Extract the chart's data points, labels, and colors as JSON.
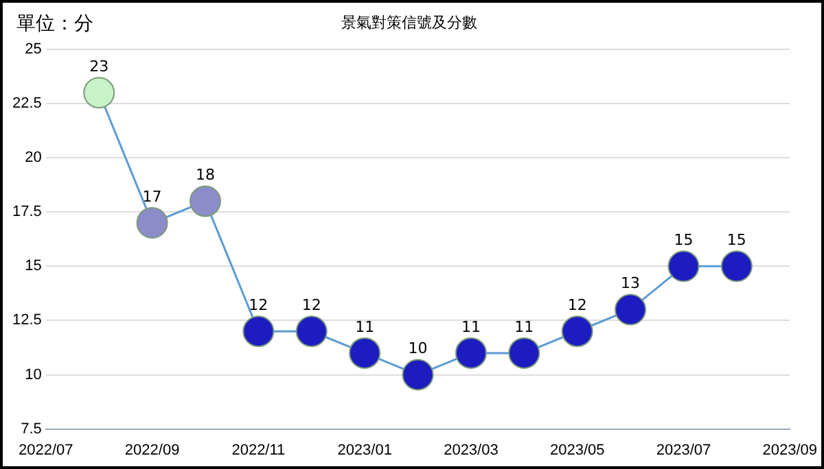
{
  "chart_data": {
    "type": "line",
    "title": "景氣對策信號及分數",
    "ylabel": "單位：分",
    "x": [
      "2022-08",
      "2022-09",
      "2022-10",
      "2022-11",
      "2022-12",
      "2023-01",
      "2023-02",
      "2023-03",
      "2023-04",
      "2023-05",
      "2023-06",
      "2023-07",
      "2023-08"
    ],
    "series": [
      {
        "color": "#5b9bd5",
        "values": [
          23,
          17,
          18,
          12,
          12,
          11,
          10,
          11,
          11,
          12,
          13,
          15,
          15
        ],
        "colors": [
          "#c8f2c8",
          "#8c8cc8",
          "#8c8cc8",
          "#1c1cc0",
          "#1c1cc0",
          "#1c1cc0",
          "#1c1cc0",
          "#1c1cc0",
          "#1c1cc0",
          "#1c1cc0",
          "#1c1cc0",
          "#1c1cc0",
          "#1c1cc0"
        ]
      }
    ],
    "xlim": [
      "2022-07",
      "2023-09"
    ],
    "xticks": [
      {
        "value": "2022-07",
        "label": "2022/07"
      },
      {
        "value": "2022-09",
        "label": "2022/09"
      },
      {
        "value": "2022-11",
        "label": "2022/11"
      },
      {
        "value": "2023-01",
        "label": "2023/01"
      },
      {
        "value": "2023-03",
        "label": "2023/03"
      },
      {
        "value": "2023-05",
        "label": "2023/05"
      },
      {
        "value": "2023-07",
        "label": "2023/07"
      },
      {
        "value": "2023-09",
        "label": "2023/09"
      }
    ],
    "ylim": [
      7.5,
      25
    ],
    "yticks": [
      7.5,
      10,
      12.5,
      15,
      17.5,
      20,
      22.5,
      25
    ],
    "grid": "y",
    "legend": false,
    "marker": "circle",
    "line_style": "solid",
    "data_labels": true
  }
}
